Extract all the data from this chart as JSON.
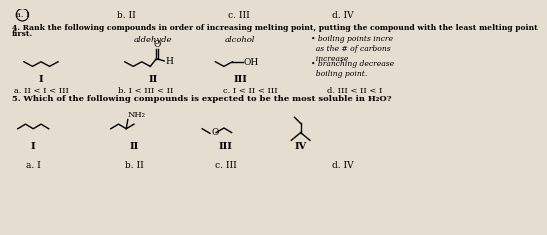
{
  "bg_color": "#e5ddd0",
  "title_q4": "4. Rank the following compounds in order of increasing melting point, putting the compound with the least melting point",
  "title_q4b": "first.",
  "title_q5": "5. Which of the following compounds is expected to be the most soluble in H₂O?",
  "q4_answers": [
    "a. II < I < III",
    "b. I < III < II",
    "c. I < II < III",
    "d. III < II < I"
  ],
  "q5_answers": [
    "a. I",
    "b. II",
    "c. III",
    "d. IV"
  ],
  "top_answers": [
    "a. I",
    "b. II",
    "c. III",
    "d. IV"
  ],
  "note1": "• boiling points incre\n  as the # of carbons\n  increase",
  "note2": "• branching decrease\n  boiling point.",
  "aldehyde_label": "aldehyde",
  "alcohol_label": "alcohol"
}
